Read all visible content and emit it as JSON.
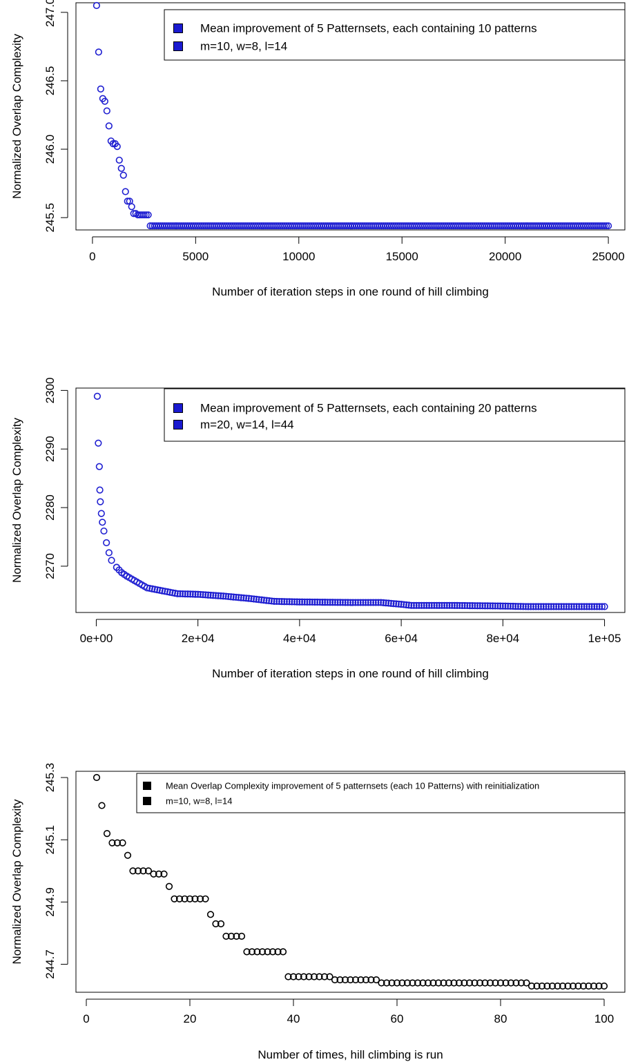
{
  "chart_data": [
    {
      "type": "scatter",
      "color": "#1f1fd1",
      "legend_fill": "#1a1ad0",
      "legend": [
        "Mean improvement of 5 Patternsets, each containing 10 patterns",
        "m=10, w=8, l=14"
      ],
      "xlabel": "Number of iteration steps in one round of hill climbing",
      "ylabel": "Normalized Overlap Complexity",
      "xlim": [
        -800,
        25800
      ],
      "ylim": [
        245.41,
        247.07
      ],
      "xticks": [
        0,
        5000,
        10000,
        15000,
        20000,
        25000
      ],
      "xtick_labels": [
        "0",
        "5000",
        "10000",
        "15000",
        "20000",
        "25000"
      ],
      "yticks": [
        245.5,
        246.0,
        246.5,
        247.0
      ],
      "ytick_labels": [
        "245.5",
        "246.0",
        "246.5",
        "247.0"
      ],
      "points_head": [
        [
          200,
          247.05
        ],
        [
          300,
          246.71
        ],
        [
          400,
          246.44
        ],
        [
          500,
          246.37
        ],
        [
          600,
          246.35
        ],
        [
          700,
          246.28
        ],
        [
          800,
          246.17
        ],
        [
          900,
          246.06
        ],
        [
          1000,
          246.04
        ],
        [
          1100,
          246.04
        ],
        [
          1200,
          246.02
        ],
        [
          1300,
          245.92
        ],
        [
          1400,
          245.86
        ],
        [
          1500,
          245.81
        ],
        [
          1600,
          245.69
        ],
        [
          1700,
          245.62
        ],
        [
          1800,
          245.62
        ],
        [
          1900,
          245.58
        ],
        [
          2000,
          245.53
        ],
        [
          2100,
          245.53
        ],
        [
          2200,
          245.52
        ],
        [
          2300,
          245.52
        ],
        [
          2400,
          245.52
        ],
        [
          2500,
          245.52
        ],
        [
          2600,
          245.52
        ],
        [
          2700,
          245.52
        ]
      ],
      "tail": {
        "x_start": 2800,
        "x_end": 25000,
        "step": 100,
        "value": 245.44
      }
    },
    {
      "type": "scatter",
      "color": "#1f1fd1",
      "legend_fill": "#1a1ad0",
      "legend": [
        "Mean improvement of 5 Patternsets, each containing 20 patterns",
        "m=20, w=14, l=44"
      ],
      "xlabel": "Number of iteration steps in one round of hill climbing",
      "ylabel": "Normalized Overlap Complexity",
      "xlim": [
        -4000,
        104000
      ],
      "ylim": [
        2262.1,
        2300.4
      ],
      "xticks": [
        0,
        20000,
        40000,
        60000,
        80000,
        100000
      ],
      "xtick_labels": [
        "0e+00",
        "2e+04",
        "4e+04",
        "6e+04",
        "8e+04",
        "1e+05"
      ],
      "yticks": [
        2270,
        2280,
        2290,
        2300
      ],
      "ytick_labels": [
        "2270",
        "2280",
        "2290",
        "2300"
      ],
      "curve_knots": [
        [
          200,
          2299.0
        ],
        [
          400,
          2291.0
        ],
        [
          600,
          2287.0
        ],
        [
          700,
          2283.0
        ],
        [
          800,
          2281.0
        ],
        [
          1000,
          2279.0
        ],
        [
          1200,
          2277.5
        ],
        [
          1500,
          2276.0
        ],
        [
          2000,
          2274.0
        ],
        [
          2500,
          2272.3
        ],
        [
          3000,
          2271.0
        ],
        [
          4000,
          2269.8
        ],
        [
          5000,
          2268.9
        ],
        [
          6000,
          2268.3
        ],
        [
          8000,
          2267.3
        ],
        [
          10000,
          2266.3
        ],
        [
          13000,
          2265.8
        ],
        [
          16000,
          2265.3
        ],
        [
          20000,
          2265.2
        ],
        [
          25000,
          2264.9
        ],
        [
          30000,
          2264.5
        ],
        [
          35000,
          2264.0
        ],
        [
          40000,
          2263.9
        ],
        [
          50000,
          2263.8
        ],
        [
          56000,
          2263.8
        ],
        [
          60000,
          2263.5
        ],
        [
          62000,
          2263.3
        ],
        [
          70000,
          2263.3
        ],
        [
          80000,
          2263.2
        ],
        [
          85000,
          2263.1
        ],
        [
          100000,
          2263.1
        ]
      ],
      "curve_step": 500
    },
    {
      "type": "scatter",
      "color": "#000000",
      "legend_fill": "#000000",
      "legend": [
        "Mean Overlap Complexity improvement of 5 patternsets (each 10 Patterns) with reinitialization",
        "m=10, w=8, l=14"
      ],
      "xlabel": "Number of times, hill climbing is run",
      "ylabel": "Normalized Overlap Complexity",
      "xlim": [
        -2,
        104
      ],
      "ylim": [
        244.61,
        245.32
      ],
      "xticks": [
        0,
        20,
        40,
        60,
        80,
        100
      ],
      "xtick_labels": [
        "0",
        "20",
        "40",
        "60",
        "80",
        "100"
      ],
      "yticks": [
        244.7,
        244.9,
        245.1,
        245.3
      ],
      "ytick_labels": [
        "244.7",
        "244.9",
        "245.1",
        "245.3"
      ],
      "x": [
        2,
        3,
        4,
        5,
        6,
        7,
        8,
        9,
        10,
        11,
        12,
        13,
        14,
        15,
        16,
        17,
        18,
        19,
        20,
        21,
        22,
        23,
        24,
        25,
        26,
        27,
        28,
        29,
        30,
        31,
        32,
        33,
        34,
        35,
        36,
        37,
        38,
        39,
        40,
        41,
        42,
        43,
        44,
        45,
        46,
        47,
        48,
        49,
        50,
        51,
        52,
        53,
        54,
        55,
        56,
        57,
        58,
        59,
        60,
        61,
        62,
        63,
        64,
        65,
        66,
        67,
        68,
        69,
        70,
        71,
        72,
        73,
        74,
        75,
        76,
        77,
        78,
        79,
        80,
        81,
        82,
        83,
        84,
        85,
        86,
        87,
        88,
        89,
        90,
        91,
        92,
        93,
        94,
        95,
        96,
        97,
        98,
        99,
        100
      ],
      "y": [
        245.3,
        245.21,
        245.12,
        245.09,
        245.09,
        245.09,
        245.05,
        245.0,
        245.0,
        245.0,
        245.0,
        244.99,
        244.99,
        244.99,
        244.95,
        244.91,
        244.91,
        244.91,
        244.91,
        244.91,
        244.91,
        244.91,
        244.86,
        244.83,
        244.83,
        244.79,
        244.79,
        244.79,
        244.79,
        244.74,
        244.74,
        244.74,
        244.74,
        244.74,
        244.74,
        244.74,
        244.74,
        244.66,
        244.66,
        244.66,
        244.66,
        244.66,
        244.66,
        244.66,
        244.66,
        244.66,
        244.65,
        244.65,
        244.65,
        244.65,
        244.65,
        244.65,
        244.65,
        244.65,
        244.65,
        244.64,
        244.64,
        244.64,
        244.64,
        244.64,
        244.64,
        244.64,
        244.64,
        244.64,
        244.64,
        244.64,
        244.64,
        244.64,
        244.64,
        244.64,
        244.64,
        244.64,
        244.64,
        244.64,
        244.64,
        244.64,
        244.64,
        244.64,
        244.64,
        244.64,
        244.64,
        244.64,
        244.64,
        244.64,
        244.63,
        244.63,
        244.63,
        244.63,
        244.63,
        244.63,
        244.63,
        244.63,
        244.63,
        244.63,
        244.63,
        244.63,
        244.63,
        244.63,
        244.63
      ]
    }
  ]
}
